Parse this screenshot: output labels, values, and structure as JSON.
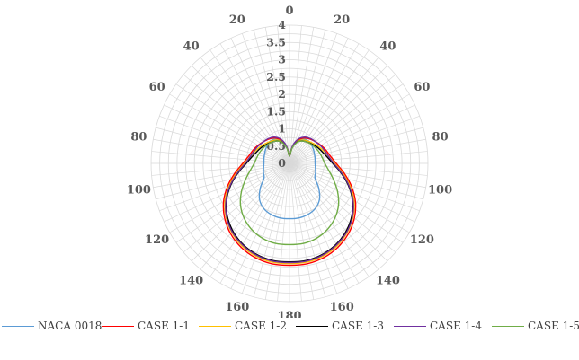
{
  "chart_data": {
    "type": "polar-line",
    "angle_range": [
      0,
      360
    ],
    "angle_ticks": [
      0,
      20,
      40,
      60,
      80,
      100,
      120,
      140,
      160,
      180,
      160,
      140,
      120,
      100,
      80,
      60,
      40,
      20
    ],
    "angle_tick_positions": [
      0,
      20,
      40,
      60,
      80,
      100,
      120,
      140,
      160,
      180,
      200,
      220,
      240,
      260,
      280,
      300,
      320,
      340
    ],
    "radial_range": [
      0,
      4
    ],
    "radial_ticks": [
      "0",
      "0.5",
      "1",
      "1.5",
      "2",
      "2.5",
      "3",
      "3.5",
      "4"
    ],
    "grid": true,
    "legend_position": "bottom",
    "series": [
      {
        "name": "NACA 0018",
        "color": "#5b9bd5",
        "theta": [
          0,
          10,
          20,
          30,
          40,
          50,
          60,
          70,
          80,
          90,
          100,
          110,
          120,
          130,
          140,
          150,
          160,
          170,
          180
        ],
        "r": [
          0.2,
          0.45,
          0.7,
          0.82,
          0.85,
          0.83,
          0.8,
          0.77,
          0.75,
          0.74,
          0.76,
          0.8,
          0.85,
          1.1,
          1.35,
          1.5,
          1.57,
          1.6,
          1.6
        ]
      },
      {
        "name": "CASE 1-1",
        "color": "#ff0000",
        "theta": [
          0,
          10,
          20,
          30,
          40,
          50,
          60,
          70,
          80,
          90,
          100,
          110,
          120,
          130,
          140,
          150,
          160,
          170,
          180
        ],
        "r": [
          0.2,
          0.5,
          0.72,
          0.85,
          0.92,
          0.98,
          1.05,
          1.12,
          1.2,
          1.35,
          1.6,
          1.9,
          2.2,
          2.45,
          2.65,
          2.8,
          2.9,
          2.95,
          2.95
        ]
      },
      {
        "name": "CASE 1-2",
        "color": "#ffc000",
        "theta": [
          0,
          10,
          20,
          30,
          40,
          50,
          60,
          70,
          80,
          90,
          100,
          110,
          120,
          130,
          140,
          150,
          160,
          170,
          180
        ],
        "r": [
          0.2,
          0.48,
          0.68,
          0.78,
          0.84,
          0.9,
          0.97,
          1.05,
          1.15,
          1.3,
          1.55,
          1.85,
          2.15,
          2.4,
          2.6,
          2.75,
          2.85,
          2.9,
          2.9
        ]
      },
      {
        "name": "CASE 1-3",
        "color": "#000000",
        "theta": [
          0,
          10,
          20,
          30,
          40,
          50,
          60,
          70,
          80,
          90,
          100,
          110,
          120,
          130,
          140,
          150,
          160,
          170,
          180
        ],
        "r": [
          0.2,
          0.47,
          0.66,
          0.75,
          0.8,
          0.86,
          0.93,
          1.0,
          1.1,
          1.25,
          1.5,
          1.8,
          2.1,
          2.35,
          2.55,
          2.7,
          2.8,
          2.85,
          2.85
        ]
      },
      {
        "name": "CASE 1-4",
        "color": "#7030a0",
        "theta": [
          0,
          10,
          20,
          30,
          40,
          50,
          60,
          70,
          80,
          90,
          100,
          110,
          120,
          130,
          140,
          150,
          160,
          170,
          180
        ],
        "r": [
          0.2,
          0.52,
          0.75,
          0.88,
          0.94,
          0.98,
          1.03,
          1.08,
          1.15,
          1.28,
          1.52,
          1.82,
          2.12,
          2.38,
          2.58,
          2.72,
          2.82,
          2.87,
          2.87
        ]
      },
      {
        "name": "CASE 1-5",
        "color": "#70ad47",
        "theta": [
          0,
          10,
          20,
          30,
          40,
          50,
          60,
          70,
          80,
          90,
          100,
          110,
          120,
          130,
          140,
          150,
          160,
          170,
          180
        ],
        "r": [
          0.2,
          0.45,
          0.65,
          0.75,
          0.8,
          0.84,
          0.88,
          0.92,
          0.96,
          1.02,
          1.15,
          1.35,
          1.6,
          1.85,
          2.05,
          2.2,
          2.3,
          2.35,
          2.35
        ]
      }
    ]
  }
}
